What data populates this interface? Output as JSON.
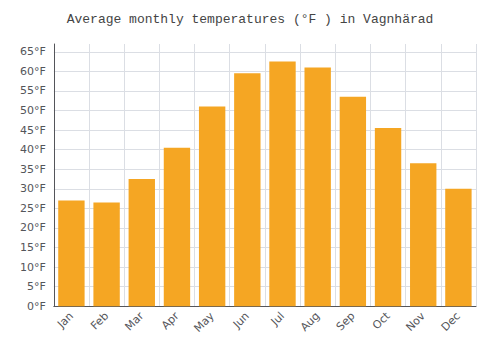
{
  "chart_data": {
    "type": "bar",
    "title": "Average monthly temperatures (°F ) in Vagnhärad",
    "categories": [
      "Jan",
      "Feb",
      "Mar",
      "Apr",
      "May",
      "Jun",
      "Jul",
      "Aug",
      "Sep",
      "Oct",
      "Nov",
      "Dec"
    ],
    "values": [
      27.0,
      26.5,
      32.5,
      40.5,
      51.0,
      59.5,
      62.5,
      61.0,
      53.5,
      45.5,
      36.5,
      30.0
    ],
    "color": "#F5A623",
    "ylim": [
      0,
      67
    ],
    "yticks": [
      {
        "value": 0,
        "label": "0°F"
      },
      {
        "value": 5,
        "label": "5°F"
      },
      {
        "value": 10,
        "label": "10°F"
      },
      {
        "value": 15,
        "label": "15°F"
      },
      {
        "value": 20,
        "label": "20°F"
      },
      {
        "value": 25,
        "label": "25°F"
      },
      {
        "value": 30,
        "label": "30°F"
      },
      {
        "value": 35,
        "label": "35°F"
      },
      {
        "value": 40,
        "label": "40°F"
      },
      {
        "value": 45,
        "label": "45°F"
      },
      {
        "value": 50,
        "label": "50°F"
      },
      {
        "value": 55,
        "label": "55°F"
      },
      {
        "value": 60,
        "label": "60°F"
      },
      {
        "value": 65,
        "label": "65°F"
      }
    ],
    "grid": true
  }
}
